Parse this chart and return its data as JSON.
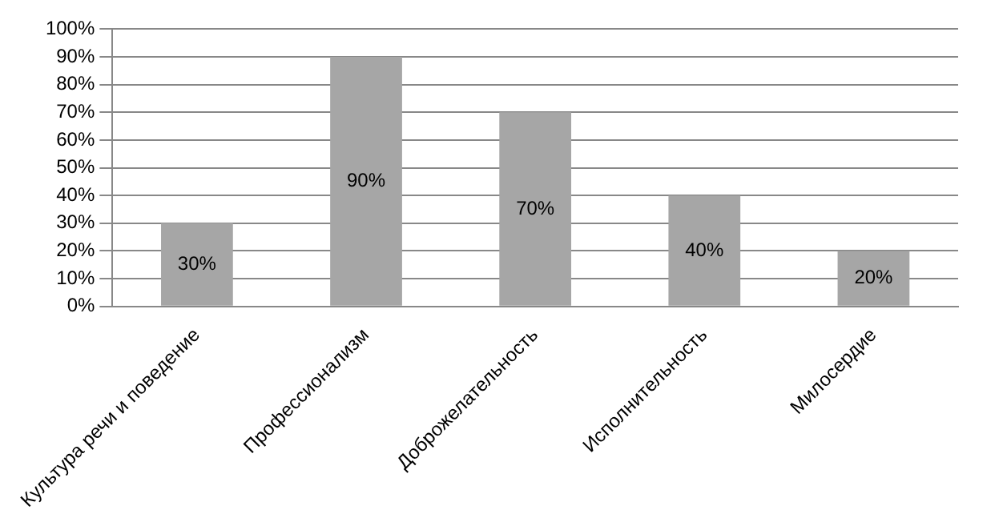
{
  "chart_data": {
    "type": "bar",
    "categories": [
      "Культура речи и поведение",
      "Профессионализм",
      "Доброжелательность",
      "Исполнительность",
      "Милосердие"
    ],
    "values": [
      30,
      90,
      70,
      40,
      20
    ],
    "color": "#a6a6a6",
    "value_labels": [
      "30%",
      "90%",
      "70%",
      "40%",
      "20%"
    ],
    "ylim": [
      0,
      100
    ],
    "yticks": [
      {
        "value": 0,
        "label": "0%"
      },
      {
        "value": 10,
        "label": "10%"
      },
      {
        "value": 20,
        "label": "20%"
      },
      {
        "value": 30,
        "label": "30%"
      },
      {
        "value": 40,
        "label": "40%"
      },
      {
        "value": 50,
        "label": "50%"
      },
      {
        "value": 60,
        "label": "60%"
      },
      {
        "value": 70,
        "label": "70%"
      },
      {
        "value": 80,
        "label": "80%"
      },
      {
        "value": 90,
        "label": "90%"
      },
      {
        "value": 100,
        "label": "100%"
      }
    ],
    "grid": "y"
  }
}
